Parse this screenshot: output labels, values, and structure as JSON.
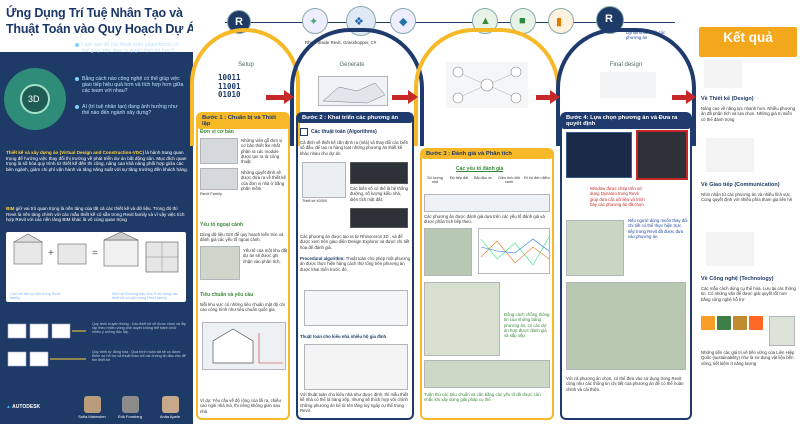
{
  "left": {
    "title_line1": "Ứng Dụng Trí Tuệ Nhân Tạo và",
    "title_line2": "Thuật Toán vào Quy Hoạch Dự Án",
    "circle_label": "3D",
    "questions": [
      "Làm sao để các thuật toán (algorithms) có thể giúp việc đưa ra quyết định tốt hơn?",
      "Bằng cách nào công nghệ có thể giúp việc giao tiếp hiệu quả hơn và tích hợp hơn giữa các team với nhau?",
      "AI (trí tuệ nhân tạo) đang ảnh hưởng như thế nào đến ngành xây dựng?"
    ],
    "para1_head": "Thiết kế và xây dựng ảo (Virtual Design and Construction-VDC)",
    "para1": "là hành trang quan trọng để hướng việc thay đổi thị trường về phát triển dự án bất động sản. Mục đích quan trọng là số hóa quy trình từ thiết kế đến thi công, nâng cao khả năng phối hợp giữa các bên ngành, giảm chi phí vận hành và tăng năng suất với sự tăng trưởng đến khách hàng.",
    "para2_head": "BIM",
    "para2": "giữ vai trò quan trọng là nền tảng của tất cả các thiết kế và dữ liệu. Trong đó thì Revit là nền tảng chính với các mẫu thiết kế có sẵn trong Revit family và vì vậy việc tích hợp Revit với các nền tảng BIM khác là vô cùng quan trọng",
    "caption_left": "Các chi tiết có sẵn trong Revit family",
    "caption_right": "Một bài thường hay nhà ở sử dụng các thiết kế có sẵn trong Revit family",
    "proc1": "Quy trình truyền thống : Các thiết kế sẽ được chọn và lắp ráp theo nhiều vòng phê duyệt không thể tránh khỏi nhiều ý tưởng độc lập.",
    "proc2": "Quy trình tự động hóa : Quá trình hoàn tất sẽ có được thêm sự hỗ trợ và thuật toán chỉ cần thông tin đầu vào để tìm thiết kế.",
    "logo_text": "AUTODESK",
    "people": [
      "Sofia Malmsten",
      "Erik Forsberg",
      "Anita Apele"
    ]
  },
  "strip": {
    "caption1": "Rhino Inside Revit, Grasshopper, C#",
    "caption2": "Dynamo đề xuất các phương án"
  },
  "stages": {
    "phase1": "Setup",
    "phase2": "Generate",
    "phase4": "Final design",
    "binary": "10011\n11001\n01010",
    "head1": "Bước 1 : Chuẩn bị và Thiết lập",
    "head2": "Bước 2 : Khai triển các phương án",
    "head3": "Bước 3 : Đánh giá và Phân tích",
    "head4": "Bước 4: Lựa chọn phương án và Đưa ra quyết định",
    "s1_sect1": "Đơn vị cơ bản",
    "s1_sect2": "Yếu tố ngoại cảnh",
    "s1_sect3": "Tiêu chuẩn và yêu cầu",
    "s1_text1": "Những viên gỗ đơn vị cơ bản thiết lke nhất phân ra các module được tạo ra từ công thuật.",
    "s1_text2": "Những quyết định sẽ được đưa ra về thiết kế của đơn vị nhà ở bằng phần mềm.",
    "s1_text3": "Dùng dữ liệu GIS để quy hoạch kiến trúc và đánh giá các yếu tố ngoại cảnh.",
    "s1_text4": "Yếu tố của một khu đất dự án sẽ được ghi nhận vào phân tích.",
    "s1_text5": "Mỗi khu vực có những tiêu chuẩn mật độ chi cao công trình như tiêu chuẩn quốc gia.",
    "s1_text6": "Ví dụ: Yêu cầu về độ rộng của lối ra, chiều cao ngôi nhà mà, thì riêng không gian sau nhà",
    "s1_revit": "Revit Family",
    "s2_sect": "Các thuật toán (Algorithms)",
    "s2_text1": "Cả định về thiết kế cần định ra (mlà) và thay đổi các biến số đầu, để tạo ra hàng loạt những phương án thiết kế khác nhau cho dự án",
    "s2_caption1": "Thiết kế 40000",
    "s2_text2": "Các biến số có thể là hệ thống đường, số lượng kiểu nhà, diện tích mặt đất.",
    "s2_text3": "Các phương án được tạo ra từ Rhinoceros 3D , và để được xem trên giao diện Design Explorer và được chi tiết hóa để đánh giá.",
    "s2_sect2": "Procedural algorithm:",
    "s2_text4": "Thuật toán cho phép một phương án được thực hiện hàng cách thứ tổng trên phương án được khai triển trước đó.",
    "s2_sect3": "Thuật toán cho kiểu nhà nhiều hộ gia đình",
    "s2_text5": "Với thuật toán cho kiểu nhà như được định, thì mẫu thiết kế nhà có thể là hàng xếp, nhưng sẽ thích hợp với chính những phương án kể từ tên tăng tuỳ ngày cụ thể trong Revit.",
    "s3_sect": "Các yếu tố đánh giá",
    "s3_metrics": [
      "Số lượng nhà",
      "Độ tiếp đất",
      "Bãi đậu xe",
      "Diện tích đất xanh",
      "Đi bộ đến điểm"
    ],
    "s3_text1": "Các phương án được đánh giá dựa trên các yếu tố đánh giá và được phân tích tiếp theo.",
    "s3_text2": "Đồng cách chồng thông tin của những bảng phương án, có các dự án hợp được đánh giá và sắp xếp.",
    "s3_text3": "Tuân thủ các tiêu chuẩn và cân bằng các yếu tố đã được cân nhắc khi xây dựng giải pháp cụ thể.",
    "s4_text1": "Window được chép trên sử dụng Dynamo trong Revit giúp đưa các dữ liệu và trình bày các phương án đã chọn",
    "s4_text2": "Nếu người dùng muốn thay đổi chi tiết có thể thực hiện trực tiếp trong Revit đã được đưa vào phương án.",
    "s4_text3": "Với cả phương án chọn, có thể đưa vào sử dụng trong Revit cũng như các thông tin chi tiết của phương án để có thể hoàn chỉnh và cải thiện.",
    "result_title": "Kết quả"
  },
  "results": {
    "r1_head": "Về Thiết kế (Design)",
    "r1_text": "Nâng cao về năng lực nhanh hơn. Nhiều phương án đã phân tích và lựa chọn. Những giá trị miễn có thể đánh trọng",
    "r2_head": "Về Giao tiếp (Communication)",
    "r2_text": "Nhìn nhận từ các phương án và nhiều lĩnh vực. Cùng quyết định với nhiều phía tham gia liên hệ",
    "r3_head": "Về Công nghệ (Technology)",
    "r3_text": "Các mẫu cách dùng cụ thể hóa. Lưu lại các thông tin. Có những văn để được giải quyết tốt hơn bằng công nghệ hỗ trợ",
    "r4_text": "Những tiến các giá trị về bền vững của Liên Hiệp Quốc (sustainability) như là sử dụng vật liệu bền vững, tiết kiệm ít năng lượng"
  }
}
